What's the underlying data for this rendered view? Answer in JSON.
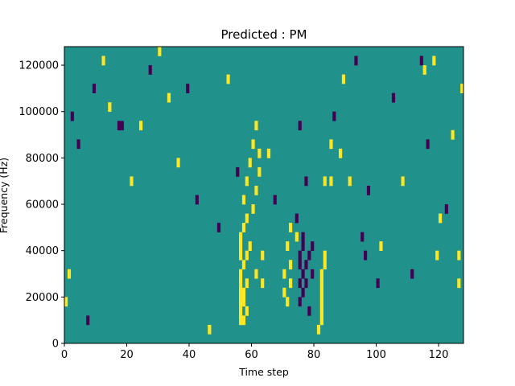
{
  "chart_data": {
    "type": "heatmap",
    "title": "Predicted : PM",
    "xlabel": "Time step",
    "ylabel": "Frequency (Hz)",
    "xlim": [
      0,
      128
    ],
    "ylim": [
      0,
      128000
    ],
    "x_ticks": [
      "0",
      "20",
      "40",
      "60",
      "80",
      "100",
      "120"
    ],
    "x_tick_values": [
      0,
      20,
      40,
      60,
      80,
      100,
      120
    ],
    "y_ticks": [
      "0",
      "20000",
      "40000",
      "60000",
      "80000",
      "100000",
      "120000"
    ],
    "y_tick_values": [
      0,
      20000,
      40000,
      60000,
      80000,
      100000,
      120000
    ],
    "colormap": "viridis",
    "background_value": 0,
    "colors": {
      "low": "#440154",
      "mid": "#21918c",
      "high": "#fde725"
    },
    "grid": false,
    "time_steps": 128,
    "frequency_bins": 32,
    "bin_height_hz": 4000,
    "cells": [
      {
        "t": 56,
        "f": 8000,
        "v": 1
      },
      {
        "t": 56,
        "f": 12000,
        "v": 1
      },
      {
        "t": 56,
        "f": 16000,
        "v": 1
      },
      {
        "t": 56,
        "f": 20000,
        "v": 1
      },
      {
        "t": 56,
        "f": 24000,
        "v": 1
      },
      {
        "t": 56,
        "f": 28000,
        "v": 1
      },
      {
        "t": 56,
        "f": 36000,
        "v": 1
      },
      {
        "t": 56,
        "f": 40000,
        "v": 1
      },
      {
        "t": 56,
        "f": 44000,
        "v": 1
      },
      {
        "t": 57,
        "f": 8000,
        "v": 1
      },
      {
        "t": 57,
        "f": 16000,
        "v": 1
      },
      {
        "t": 57,
        "f": 20000,
        "v": 1
      },
      {
        "t": 57,
        "f": 32000,
        "v": 1
      },
      {
        "t": 57,
        "f": 48000,
        "v": 1
      },
      {
        "t": 57,
        "f": 60000,
        "v": 1
      },
      {
        "t": 58,
        "f": 12000,
        "v": 1
      },
      {
        "t": 58,
        "f": 24000,
        "v": 1
      },
      {
        "t": 58,
        "f": 36000,
        "v": 1
      },
      {
        "t": 58,
        "f": 52000,
        "v": 1
      },
      {
        "t": 58,
        "f": 68000,
        "v": 1
      },
      {
        "t": 59,
        "f": 40000,
        "v": 1
      },
      {
        "t": 59,
        "f": 76000,
        "v": 1
      },
      {
        "t": 60,
        "f": 56000,
        "v": 1
      },
      {
        "t": 60,
        "f": 84000,
        "v": 1
      },
      {
        "t": 61,
        "f": 28000,
        "v": 1
      },
      {
        "t": 61,
        "f": 64000,
        "v": 1
      },
      {
        "t": 61,
        "f": 92000,
        "v": 1
      },
      {
        "t": 62,
        "f": 72000,
        "v": 1
      },
      {
        "t": 62,
        "f": 80000,
        "v": 1
      },
      {
        "t": 63,
        "f": 36000,
        "v": 1
      },
      {
        "t": 63,
        "f": 24000,
        "v": 1
      },
      {
        "t": 70,
        "f": 28000,
        "v": 1
      },
      {
        "t": 70,
        "f": 20000,
        "v": 1
      },
      {
        "t": 71,
        "f": 16000,
        "v": 1
      },
      {
        "t": 71,
        "f": 40000,
        "v": 1
      },
      {
        "t": 72,
        "f": 24000,
        "v": 1
      },
      {
        "t": 72,
        "f": 32000,
        "v": 1
      },
      {
        "t": 72,
        "f": 48000,
        "v": 1
      },
      {
        "t": 74,
        "f": 44000,
        "v": 1
      },
      {
        "t": 74,
        "f": 52000,
        "v": -1
      },
      {
        "t": 75,
        "f": 16000,
        "v": -1
      },
      {
        "t": 75,
        "f": 24000,
        "v": -1
      },
      {
        "t": 75,
        "f": 32000,
        "v": -1
      },
      {
        "t": 75,
        "f": 36000,
        "v": -1
      },
      {
        "t": 75,
        "f": 92000,
        "v": -1
      },
      {
        "t": 76,
        "f": 20000,
        "v": -1
      },
      {
        "t": 76,
        "f": 28000,
        "v": -1
      },
      {
        "t": 76,
        "f": 40000,
        "v": -1
      },
      {
        "t": 76,
        "f": 44000,
        "v": -1
      },
      {
        "t": 77,
        "f": 24000,
        "v": -1
      },
      {
        "t": 77,
        "f": 32000,
        "v": -1
      },
      {
        "t": 77,
        "f": 68000,
        "v": -1
      },
      {
        "t": 78,
        "f": 12000,
        "v": -1
      },
      {
        "t": 78,
        "f": 36000,
        "v": -1
      },
      {
        "t": 79,
        "f": 28000,
        "v": -1
      },
      {
        "t": 79,
        "f": 40000,
        "v": -1
      },
      {
        "t": 81,
        "f": 4000,
        "v": 1
      },
      {
        "t": 82,
        "f": 8000,
        "v": 1
      },
      {
        "t": 82,
        "f": 12000,
        "v": 1
      },
      {
        "t": 82,
        "f": 16000,
        "v": 1
      },
      {
        "t": 82,
        "f": 20000,
        "v": 1
      },
      {
        "t": 82,
        "f": 24000,
        "v": 1
      },
      {
        "t": 82,
        "f": 28000,
        "v": 1
      },
      {
        "t": 83,
        "f": 32000,
        "v": 1
      },
      {
        "t": 83,
        "f": 36000,
        "v": 1
      },
      {
        "t": 83,
        "f": 68000,
        "v": 1
      },
      {
        "t": 85,
        "f": 68000,
        "v": 1
      },
      {
        "t": 85,
        "f": 84000,
        "v": 1
      },
      {
        "t": 88,
        "f": 80000,
        "v": 1
      },
      {
        "t": 91,
        "f": 68000,
        "v": 1
      },
      {
        "t": 95,
        "f": 44000,
        "v": -1
      },
      {
        "t": 96,
        "f": 36000,
        "v": -1
      },
      {
        "t": 100,
        "f": 24000,
        "v": -1
      },
      {
        "t": 101,
        "f": 40000,
        "v": 1
      },
      {
        "t": 114,
        "f": 120000,
        "v": -1
      },
      {
        "t": 115,
        "f": 116000,
        "v": 1
      },
      {
        "t": 118,
        "f": 120000,
        "v": 1
      },
      {
        "t": 120,
        "f": 52000,
        "v": 1
      },
      {
        "t": 122,
        "f": 56000,
        "v": -1
      },
      {
        "t": 126,
        "f": 36000,
        "v": 1
      },
      {
        "t": 126,
        "f": 24000,
        "v": 1
      },
      {
        "t": 127,
        "f": 108000,
        "v": 1
      },
      {
        "t": 0,
        "f": 16000,
        "v": 1
      },
      {
        "t": 1,
        "f": 28000,
        "v": 1
      },
      {
        "t": 2,
        "f": 96000,
        "v": -1
      },
      {
        "t": 4,
        "f": 84000,
        "v": -1
      },
      {
        "t": 7,
        "f": 8000,
        "v": -1
      },
      {
        "t": 9,
        "f": 108000,
        "v": -1
      },
      {
        "t": 12,
        "f": 120000,
        "v": 1
      },
      {
        "t": 14,
        "f": 100000,
        "v": 1
      },
      {
        "t": 17,
        "f": 92000,
        "v": -1
      },
      {
        "t": 18,
        "f": 92000,
        "v": -1
      },
      {
        "t": 21,
        "f": 68000,
        "v": 1
      },
      {
        "t": 24,
        "f": 92000,
        "v": 1
      },
      {
        "t": 27,
        "f": 116000,
        "v": -1
      },
      {
        "t": 30,
        "f": 124000,
        "v": 1
      },
      {
        "t": 33,
        "f": 104000,
        "v": 1
      },
      {
        "t": 36,
        "f": 76000,
        "v": 1
      },
      {
        "t": 39,
        "f": 108000,
        "v": -1
      },
      {
        "t": 42,
        "f": 60000,
        "v": -1
      },
      {
        "t": 46,
        "f": 4000,
        "v": 1
      },
      {
        "t": 49,
        "f": 48000,
        "v": -1
      },
      {
        "t": 52,
        "f": 112000,
        "v": 1
      },
      {
        "t": 55,
        "f": 72000,
        "v": -1
      },
      {
        "t": 65,
        "f": 80000,
        "v": 1
      },
      {
        "t": 67,
        "f": 60000,
        "v": -1
      },
      {
        "t": 86,
        "f": 96000,
        "v": -1
      },
      {
        "t": 89,
        "f": 112000,
        "v": 1
      },
      {
        "t": 93,
        "f": 120000,
        "v": -1
      },
      {
        "t": 97,
        "f": 64000,
        "v": -1
      },
      {
        "t": 105,
        "f": 104000,
        "v": -1
      },
      {
        "t": 108,
        "f": 68000,
        "v": 1
      },
      {
        "t": 111,
        "f": 28000,
        "v": -1
      },
      {
        "t": 116,
        "f": 84000,
        "v": -1
      },
      {
        "t": 119,
        "f": 36000,
        "v": 1
      },
      {
        "t": 124,
        "f": 88000,
        "v": 1
      }
    ]
  }
}
